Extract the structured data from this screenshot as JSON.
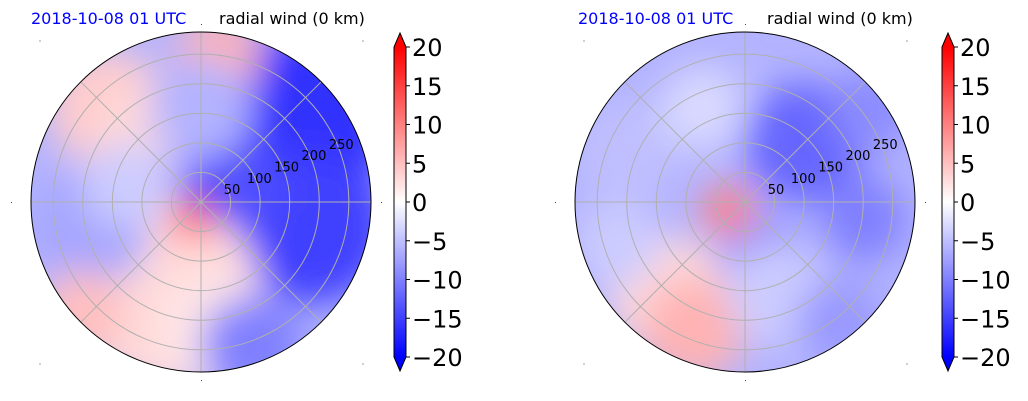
{
  "colors": {
    "date": "#0000ff",
    "negative": "#0000ff",
    "positive": "#ff0000",
    "neutral": "#ffffff",
    "grid": "#b0b0b0"
  },
  "chart_data": [
    {
      "type": "heatmap",
      "projection": "polar",
      "date_label": "2018-10-08 01 UTC",
      "title": "radial wind (0 km)",
      "radial_ticks": [
        "50",
        "100",
        "150",
        "200",
        "250"
      ],
      "colorbar": {
        "ticks": [
          "20",
          "15",
          "10",
          "5",
          "0",
          "−5",
          "−10",
          "−15",
          "−20"
        ],
        "vmin": -20,
        "vmax": 20,
        "extend": "both",
        "colormap": "bwr reversed"
      },
      "grid": true
    },
    {
      "type": "heatmap",
      "projection": "polar",
      "date_label": "2018-10-08 01 UTC",
      "title": "radial wind (0 km)",
      "radial_ticks": [
        "50",
        "100",
        "150",
        "200",
        "250"
      ],
      "colorbar": {
        "ticks": [
          "20",
          "15",
          "10",
          "5",
          "0",
          "−5",
          "−10",
          "−15",
          "−20"
        ],
        "vmin": -20,
        "vmax": 20,
        "extend": "both",
        "colormap": "bwr reversed"
      },
      "grid": true
    }
  ]
}
